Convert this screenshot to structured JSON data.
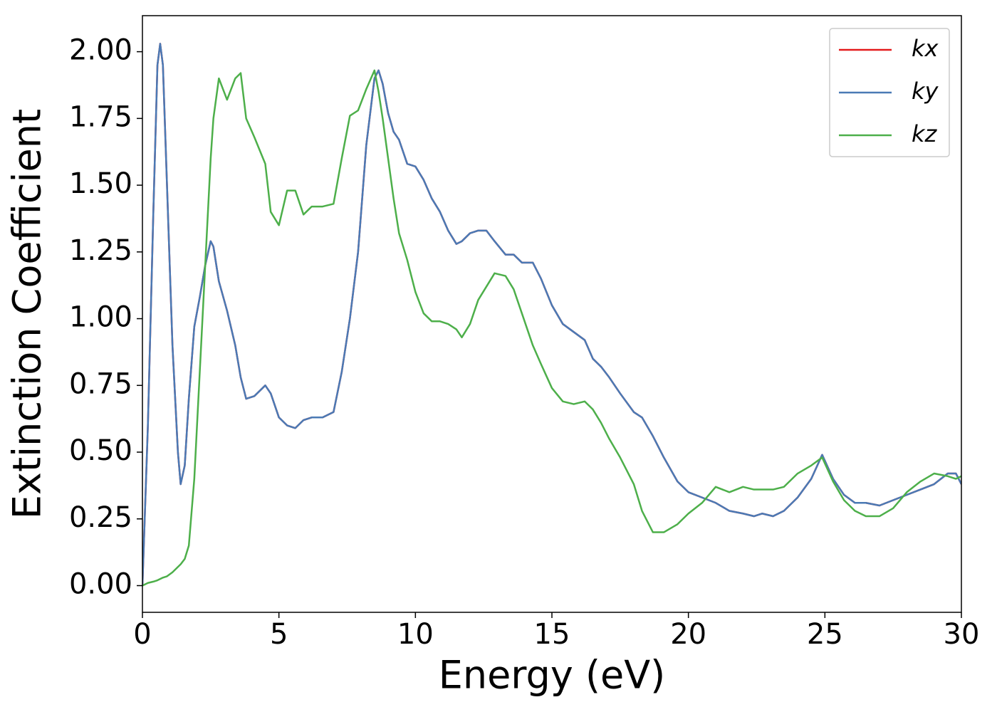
{
  "chart_data": {
    "type": "line",
    "xlabel": "Energy (eV)",
    "ylabel": "Extinction Coefficient",
    "xlim": [
      0,
      30
    ],
    "ylim": [
      -0.1,
      2.135
    ],
    "xticks": [
      0,
      5,
      10,
      15,
      20,
      25,
      30
    ],
    "yticks": [
      {
        "value": 0,
        "label": "0.00"
      },
      {
        "value": 0.25,
        "label": "0.25"
      },
      {
        "value": 0.5,
        "label": "0.50"
      },
      {
        "value": 0.75,
        "label": "0.75"
      },
      {
        "value": 1,
        "label": "1.00"
      },
      {
        "value": 1.25,
        "label": "1.25"
      },
      {
        "value": 1.5,
        "label": "1.50"
      },
      {
        "value": 1.75,
        "label": "1.75"
      },
      {
        "value": 2,
        "label": "2.00"
      }
    ],
    "legend": "upper right",
    "x": [
      0,
      0.2,
      0.4,
      0.55,
      0.65,
      0.75,
      0.9,
      1.1,
      1.3,
      1.4,
      1.55,
      1.7,
      1.9,
      2.1,
      2.3,
      2.5,
      2.6,
      2.8,
      3.1,
      3.4,
      3.6,
      3.8,
      4.1,
      4.5,
      4.7,
      5.0,
      5.3,
      5.6,
      5.9,
      6.2,
      6.6,
      7.0,
      7.3,
      7.6,
      7.9,
      8.2,
      8.5,
      8.65,
      8.8,
      9.0,
      9.2,
      9.4,
      9.7,
      10.0,
      10.3,
      10.6,
      10.9,
      11.2,
      11.5,
      11.7,
      12.0,
      12.3,
      12.6,
      12.9,
      13.3,
      13.6,
      13.9,
      14.3,
      14.6,
      15.0,
      15.4,
      15.8,
      16.2,
      16.5,
      16.8,
      17.1,
      17.5,
      18.0,
      18.3,
      18.7,
      19.1,
      19.6,
      20.0,
      20.5,
      21.0,
      21.5,
      22.0,
      22.4,
      22.7,
      23.1,
      23.5,
      24.0,
      24.5,
      24.9,
      25.3,
      25.7,
      26.1,
      26.5,
      27.0,
      27.5,
      28.0,
      28.5,
      29.0,
      29.5,
      29.8,
      30.0
    ],
    "series": [
      {
        "name": "kx",
        "color": "#e41a1c",
        "values": [
          0,
          0.6,
          1.4,
          1.95,
          2.03,
          1.95,
          1.5,
          0.9,
          0.5,
          0.38,
          0.45,
          0.7,
          0.97,
          1.08,
          1.2,
          1.29,
          1.27,
          1.14,
          1.03,
          0.9,
          0.78,
          0.7,
          0.71,
          0.75,
          0.72,
          0.63,
          0.6,
          0.59,
          0.62,
          0.63,
          0.63,
          0.65,
          0.8,
          1.0,
          1.25,
          1.65,
          1.9,
          1.93,
          1.88,
          1.77,
          1.7,
          1.67,
          1.58,
          1.57,
          1.52,
          1.45,
          1.4,
          1.33,
          1.28,
          1.29,
          1.32,
          1.33,
          1.33,
          1.29,
          1.24,
          1.24,
          1.21,
          1.21,
          1.15,
          1.05,
          0.98,
          0.95,
          0.92,
          0.85,
          0.82,
          0.78,
          0.72,
          0.65,
          0.63,
          0.56,
          0.48,
          0.39,
          0.35,
          0.33,
          0.31,
          0.28,
          0.27,
          0.26,
          0.27,
          0.26,
          0.28,
          0.33,
          0.4,
          0.49,
          0.4,
          0.34,
          0.31,
          0.31,
          0.3,
          0.32,
          0.34,
          0.36,
          0.38,
          0.42,
          0.42,
          0.38
        ]
      },
      {
        "name": "ky",
        "color": "#4a7ab5",
        "values": [
          0,
          0.6,
          1.4,
          1.95,
          2.03,
          1.95,
          1.5,
          0.9,
          0.5,
          0.38,
          0.45,
          0.7,
          0.97,
          1.08,
          1.2,
          1.29,
          1.27,
          1.14,
          1.03,
          0.9,
          0.78,
          0.7,
          0.71,
          0.75,
          0.72,
          0.63,
          0.6,
          0.59,
          0.62,
          0.63,
          0.63,
          0.65,
          0.8,
          1.0,
          1.25,
          1.65,
          1.9,
          1.93,
          1.88,
          1.77,
          1.7,
          1.67,
          1.58,
          1.57,
          1.52,
          1.45,
          1.4,
          1.33,
          1.28,
          1.29,
          1.32,
          1.33,
          1.33,
          1.29,
          1.24,
          1.24,
          1.21,
          1.21,
          1.15,
          1.05,
          0.98,
          0.95,
          0.92,
          0.85,
          0.82,
          0.78,
          0.72,
          0.65,
          0.63,
          0.56,
          0.48,
          0.39,
          0.35,
          0.33,
          0.31,
          0.28,
          0.27,
          0.26,
          0.27,
          0.26,
          0.28,
          0.33,
          0.4,
          0.49,
          0.4,
          0.34,
          0.31,
          0.31,
          0.3,
          0.32,
          0.34,
          0.36,
          0.38,
          0.42,
          0.42,
          0.38
        ]
      },
      {
        "name": "kz",
        "color": "#4daf4a",
        "values": [
          0,
          0.01,
          0.015,
          0.02,
          0.025,
          0.03,
          0.035,
          0.05,
          0.07,
          0.08,
          0.1,
          0.15,
          0.4,
          0.8,
          1.2,
          1.6,
          1.75,
          1.9,
          1.82,
          1.9,
          1.92,
          1.75,
          1.68,
          1.58,
          1.4,
          1.35,
          1.48,
          1.48,
          1.39,
          1.42,
          1.42,
          1.43,
          1.6,
          1.76,
          1.78,
          1.86,
          1.93,
          1.85,
          1.75,
          1.6,
          1.45,
          1.32,
          1.22,
          1.1,
          1.02,
          0.99,
          0.99,
          0.98,
          0.96,
          0.93,
          0.98,
          1.07,
          1.12,
          1.17,
          1.16,
          1.11,
          1.02,
          0.9,
          0.83,
          0.74,
          0.69,
          0.68,
          0.69,
          0.66,
          0.61,
          0.55,
          0.48,
          0.38,
          0.28,
          0.2,
          0.2,
          0.23,
          0.27,
          0.31,
          0.37,
          0.35,
          0.37,
          0.36,
          0.36,
          0.36,
          0.37,
          0.42,
          0.45,
          0.48,
          0.39,
          0.32,
          0.28,
          0.26,
          0.26,
          0.29,
          0.35,
          0.39,
          0.42,
          0.41,
          0.4,
          0.41
        ]
      }
    ]
  }
}
